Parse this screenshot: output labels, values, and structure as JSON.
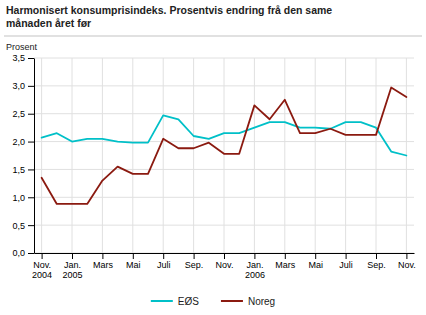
{
  "chart_data": {
    "type": "line",
    "title": "Harmonisert konsumprisindeks. Prosentvis endring frå den same\nmånaden året før",
    "y_label": "Prosent",
    "categories": [
      "Nov.\n2004",
      null,
      "Jan.\n2005",
      null,
      "Mars",
      null,
      "Mai",
      null,
      "Juli",
      null,
      "Sep.",
      null,
      "Nov.",
      null,
      "Jan.\n2006",
      null,
      "Mars",
      null,
      "Mai",
      null,
      "Juli",
      null,
      "Sep.",
      null,
      "Nov."
    ],
    "series": [
      {
        "name": "EØS",
        "color": "#00c0c8",
        "values": [
          2.07,
          2.15,
          2.0,
          2.05,
          2.05,
          2.0,
          1.98,
          1.98,
          2.47,
          2.4,
          2.1,
          2.05,
          2.15,
          2.15,
          2.25,
          2.35,
          2.35,
          2.25,
          2.25,
          2.23,
          2.35,
          2.35,
          2.25,
          1.82,
          1.75
        ]
      },
      {
        "name": "Noreg",
        "color": "#8b1a10",
        "values": [
          1.35,
          0.88,
          0.88,
          0.88,
          1.3,
          1.55,
          1.42,
          1.42,
          2.05,
          1.88,
          1.88,
          1.98,
          1.78,
          1.78,
          2.65,
          2.4,
          2.75,
          2.15,
          2.15,
          2.23,
          2.12,
          2.12,
          2.12,
          2.97,
          2.8
        ]
      }
    ],
    "ylim": [
      0.0,
      3.5
    ],
    "yticks": [
      {
        "value": 0.0,
        "label": "0,0"
      },
      {
        "value": 0.5,
        "label": "0,5"
      },
      {
        "value": 1.0,
        "label": "1,0"
      },
      {
        "value": 1.5,
        "label": "1,5"
      },
      {
        "value": 2.0,
        "label": "2,0"
      },
      {
        "value": 2.5,
        "label": "2,5"
      },
      {
        "value": 3.0,
        "label": "3,0"
      },
      {
        "value": 3.5,
        "label": "3,5"
      }
    ],
    "grid": true,
    "legend": "bottom"
  }
}
